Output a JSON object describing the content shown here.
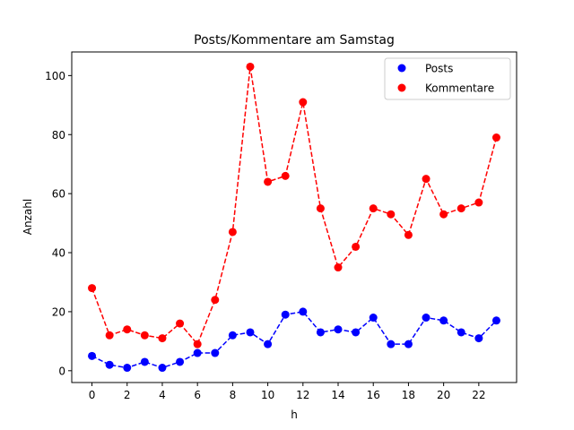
{
  "chart_data": {
    "type": "line",
    "title": "Posts/Kommentare am Samstag",
    "xlabel": "h",
    "ylabel": "Anzahl",
    "x": [
      0,
      1,
      2,
      3,
      4,
      5,
      6,
      7,
      8,
      9,
      10,
      11,
      12,
      13,
      14,
      15,
      16,
      17,
      18,
      19,
      20,
      21,
      22,
      23
    ],
    "xlim": [
      -1.15,
      24.15
    ],
    "ylim": [
      -4,
      108
    ],
    "xticks": [
      0,
      2,
      4,
      6,
      8,
      10,
      12,
      14,
      16,
      18,
      20,
      22
    ],
    "yticks": [
      0,
      20,
      40,
      60,
      80,
      100
    ],
    "grid": false,
    "legend_position": "top-right",
    "series": [
      {
        "name": "Posts",
        "color": "#0000ff",
        "line_style": "dashed",
        "marker": "circle",
        "values": [
          5,
          2,
          1,
          3,
          1,
          3,
          6,
          6,
          12,
          13,
          9,
          19,
          20,
          13,
          14,
          13,
          18,
          9,
          9,
          18,
          17,
          13,
          11,
          17
        ]
      },
      {
        "name": "Kommentare",
        "color": "#ff0000",
        "line_style": "dashed",
        "marker": "circle",
        "values": [
          28,
          12,
          14,
          12,
          11,
          16,
          9,
          24,
          47,
          103,
          64,
          66,
          91,
          55,
          35,
          42,
          55,
          53,
          46,
          65,
          53,
          55,
          57,
          79
        ]
      }
    ]
  }
}
